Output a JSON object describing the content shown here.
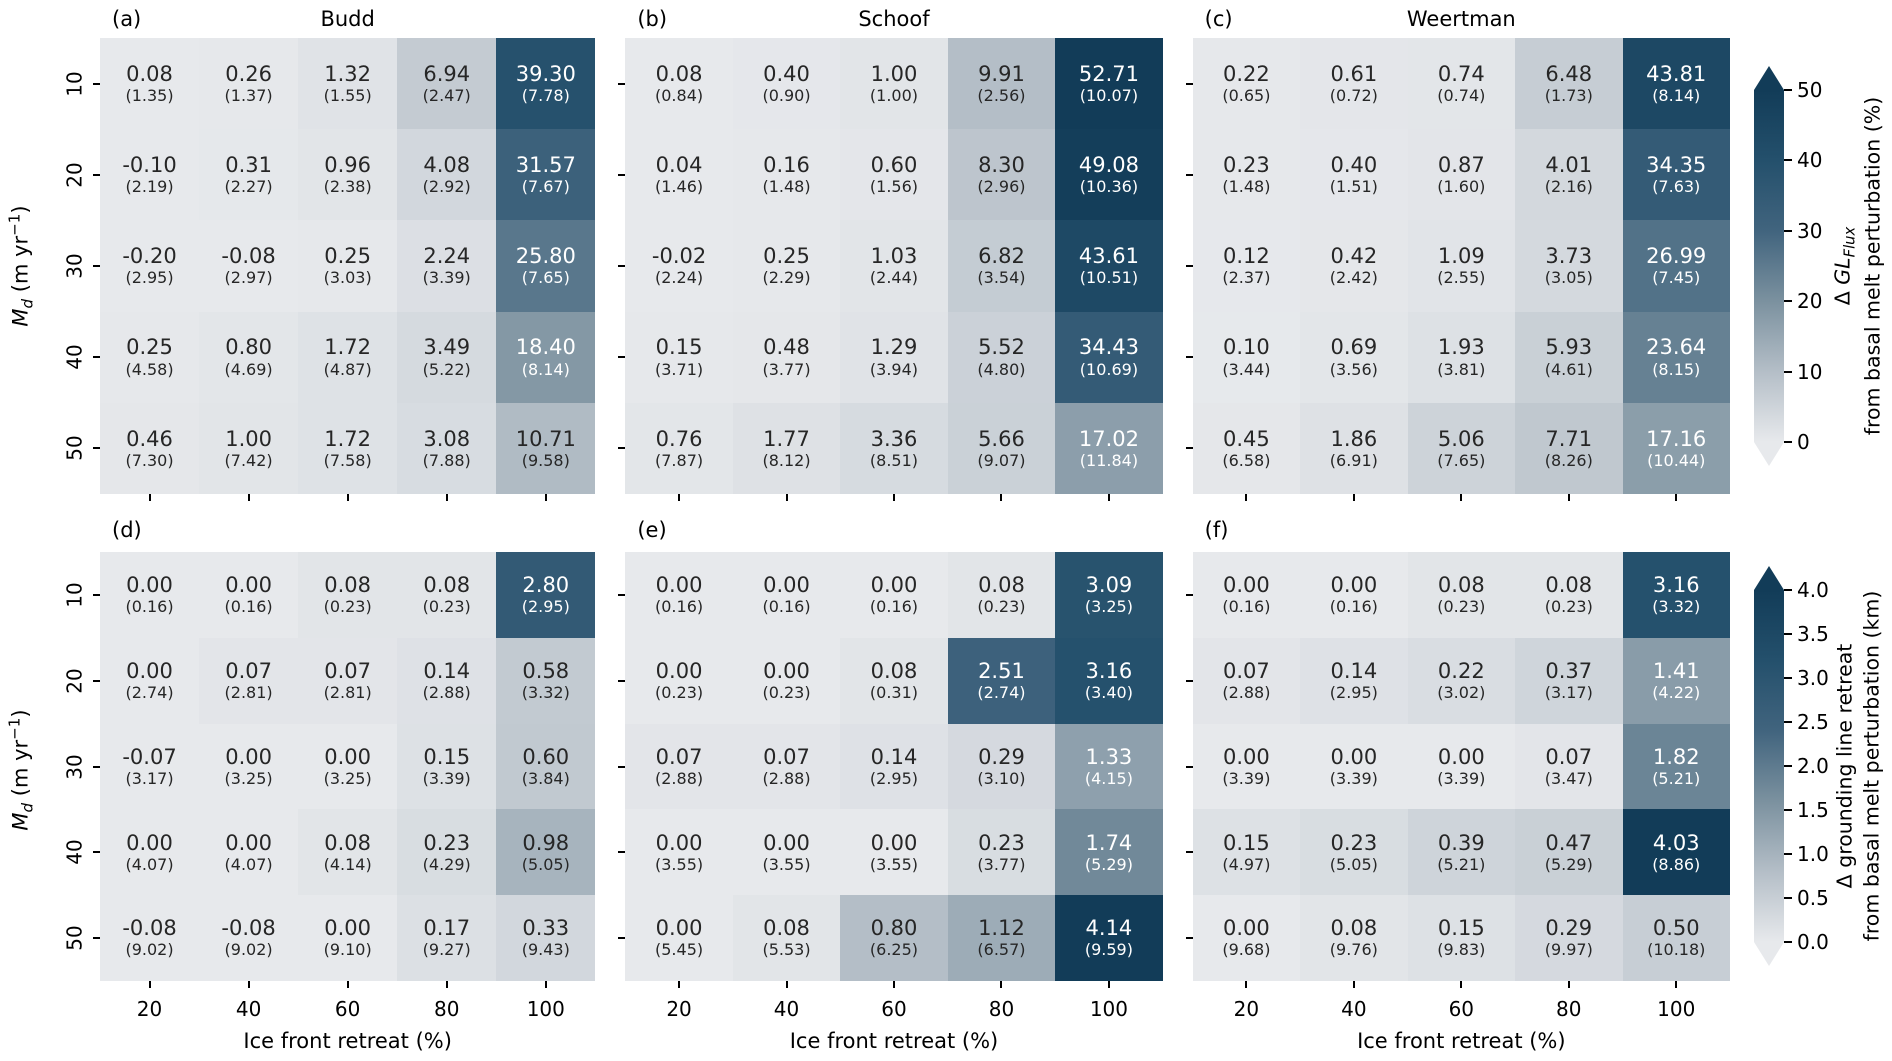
{
  "figure": {
    "x_label": "Ice front retreat (%)",
    "x_ticks": [
      "20",
      "40",
      "60",
      "80",
      "100"
    ],
    "y_ticks": [
      "10",
      "20",
      "30",
      "40",
      "50"
    ],
    "y_label": {
      "pre": "M",
      "sub": "d",
      "mid": " (m yr",
      "sup": "−1",
      "post": ")"
    }
  },
  "colormap": {
    "stops": [
      [
        0,
        "#e7e9ec"
      ],
      [
        0.2,
        "#b4bec7"
      ],
      [
        0.4,
        "#7b919f"
      ],
      [
        0.6,
        "#41647e"
      ],
      [
        0.8,
        "#24506c"
      ],
      [
        1,
        "#123c58"
      ]
    ],
    "text_threshold": 0.3,
    "annot_dark": "#262626",
    "annot_light": "#ffffff"
  },
  "colorbars": [
    {
      "vmin": 0,
      "vmax": 50,
      "ticks": [
        "0",
        "10",
        "20",
        "30",
        "40",
        "50"
      ],
      "label": {
        "line1": {
          "pre": "Δ ",
          "it": "GL",
          "sub": "Flux"
        },
        "line2": "from basal melt perturbation (%)"
      }
    },
    {
      "vmin": 0,
      "vmax": 4,
      "ticks": [
        "0.0",
        "0.5",
        "1.0",
        "1.5",
        "2.0",
        "2.5",
        "3.0",
        "3.5",
        "4.0"
      ],
      "label": {
        "line1": {
          "pre": "Δ grounding line retreat"
        },
        "line2": "from basal melt perturbation (km)"
      }
    }
  ],
  "chart_data": [
    {
      "type": "heatmap",
      "panel": "(a)",
      "title": "Budd",
      "colorbar": 0,
      "x": [
        20,
        40,
        60,
        80,
        100
      ],
      "y": [
        10,
        20,
        30,
        40,
        50
      ],
      "cells": [
        [
          [
            "0.08",
            "(1.35)"
          ],
          [
            "0.26",
            "(1.37)"
          ],
          [
            "1.32",
            "(1.55)"
          ],
          [
            "6.94",
            "(2.47)"
          ],
          [
            "39.30",
            "(7.78)"
          ]
        ],
        [
          [
            "-0.10",
            "(2.19)"
          ],
          [
            "0.31",
            "(2.27)"
          ],
          [
            "0.96",
            "(2.38)"
          ],
          [
            "4.08",
            "(2.92)"
          ],
          [
            "31.57",
            "(7.67)"
          ]
        ],
        [
          [
            "-0.20",
            "(2.95)"
          ],
          [
            "-0.08",
            "(2.97)"
          ],
          [
            "0.25",
            "(3.03)"
          ],
          [
            "2.24",
            "(3.39)"
          ],
          [
            "25.80",
            "(7.65)"
          ]
        ],
        [
          [
            "0.25",
            "(4.58)"
          ],
          [
            "0.80",
            "(4.69)"
          ],
          [
            "1.72",
            "(4.87)"
          ],
          [
            "3.49",
            "(5.22)"
          ],
          [
            "18.40",
            "(8.14)"
          ]
        ],
        [
          [
            "0.46",
            "(7.30)"
          ],
          [
            "1.00",
            "(7.42)"
          ],
          [
            "1.72",
            "(7.58)"
          ],
          [
            "3.08",
            "(7.88)"
          ],
          [
            "10.71",
            "(9.58)"
          ]
        ]
      ]
    },
    {
      "type": "heatmap",
      "panel": "(b)",
      "title": "Schoof",
      "colorbar": 0,
      "x": [
        20,
        40,
        60,
        80,
        100
      ],
      "y": [
        10,
        20,
        30,
        40,
        50
      ],
      "cells": [
        [
          [
            "0.08",
            "(0.84)"
          ],
          [
            "0.40",
            "(0.90)"
          ],
          [
            "1.00",
            "(1.00)"
          ],
          [
            "9.91",
            "(2.56)"
          ],
          [
            "52.71",
            "(10.07)"
          ]
        ],
        [
          [
            "0.04",
            "(1.46)"
          ],
          [
            "0.16",
            "(1.48)"
          ],
          [
            "0.60",
            "(1.56)"
          ],
          [
            "8.30",
            "(2.96)"
          ],
          [
            "49.08",
            "(10.36)"
          ]
        ],
        [
          [
            "-0.02",
            "(2.24)"
          ],
          [
            "0.25",
            "(2.29)"
          ],
          [
            "1.03",
            "(2.44)"
          ],
          [
            "6.82",
            "(3.54)"
          ],
          [
            "43.61",
            "(10.51)"
          ]
        ],
        [
          [
            "0.15",
            "(3.71)"
          ],
          [
            "0.48",
            "(3.77)"
          ],
          [
            "1.29",
            "(3.94)"
          ],
          [
            "5.52",
            "(4.80)"
          ],
          [
            "34.43",
            "(10.69)"
          ]
        ],
        [
          [
            "0.76",
            "(7.87)"
          ],
          [
            "1.77",
            "(8.12)"
          ],
          [
            "3.36",
            "(8.51)"
          ],
          [
            "5.66",
            "(9.07)"
          ],
          [
            "17.02",
            "(11.84)"
          ]
        ]
      ]
    },
    {
      "type": "heatmap",
      "panel": "(c)",
      "title": "Weertman",
      "colorbar": 0,
      "x": [
        20,
        40,
        60,
        80,
        100
      ],
      "y": [
        10,
        20,
        30,
        40,
        50
      ],
      "cells": [
        [
          [
            "0.22",
            "(0.65)"
          ],
          [
            "0.61",
            "(0.72)"
          ],
          [
            "0.74",
            "(0.74)"
          ],
          [
            "6.48",
            "(1.73)"
          ],
          [
            "43.81",
            "(8.14)"
          ]
        ],
        [
          [
            "0.23",
            "(1.48)"
          ],
          [
            "0.40",
            "(1.51)"
          ],
          [
            "0.87",
            "(1.60)"
          ],
          [
            "4.01",
            "(2.16)"
          ],
          [
            "34.35",
            "(7.63)"
          ]
        ],
        [
          [
            "0.12",
            "(2.37)"
          ],
          [
            "0.42",
            "(2.42)"
          ],
          [
            "1.09",
            "(2.55)"
          ],
          [
            "3.73",
            "(3.05)"
          ],
          [
            "26.99",
            "(7.45)"
          ]
        ],
        [
          [
            "0.10",
            "(3.44)"
          ],
          [
            "0.69",
            "(3.56)"
          ],
          [
            "1.93",
            "(3.81)"
          ],
          [
            "5.93",
            "(4.61)"
          ],
          [
            "23.64",
            "(8.15)"
          ]
        ],
        [
          [
            "0.45",
            "(6.58)"
          ],
          [
            "1.86",
            "(6.91)"
          ],
          [
            "5.06",
            "(7.65)"
          ],
          [
            "7.71",
            "(8.26)"
          ],
          [
            "17.16",
            "(10.44)"
          ]
        ]
      ]
    },
    {
      "type": "heatmap",
      "panel": "(d)",
      "title": "",
      "colorbar": 1,
      "x": [
        20,
        40,
        60,
        80,
        100
      ],
      "y": [
        10,
        20,
        30,
        40,
        50
      ],
      "cells": [
        [
          [
            "0.00",
            "(0.16)"
          ],
          [
            "0.00",
            "(0.16)"
          ],
          [
            "0.08",
            "(0.23)"
          ],
          [
            "0.08",
            "(0.23)"
          ],
          [
            "2.80",
            "(2.95)"
          ]
        ],
        [
          [
            "0.00",
            "(2.74)"
          ],
          [
            "0.07",
            "(2.81)"
          ],
          [
            "0.07",
            "(2.81)"
          ],
          [
            "0.14",
            "(2.88)"
          ],
          [
            "0.58",
            "(3.32)"
          ]
        ],
        [
          [
            "-0.07",
            "(3.17)"
          ],
          [
            "0.00",
            "(3.25)"
          ],
          [
            "0.00",
            "(3.25)"
          ],
          [
            "0.15",
            "(3.39)"
          ],
          [
            "0.60",
            "(3.84)"
          ]
        ],
        [
          [
            "0.00",
            "(4.07)"
          ],
          [
            "0.00",
            "(4.07)"
          ],
          [
            "0.08",
            "(4.14)"
          ],
          [
            "0.23",
            "(4.29)"
          ],
          [
            "0.98",
            "(5.05)"
          ]
        ],
        [
          [
            "-0.08",
            "(9.02)"
          ],
          [
            "-0.08",
            "(9.02)"
          ],
          [
            "0.00",
            "(9.10)"
          ],
          [
            "0.17",
            "(9.27)"
          ],
          [
            "0.33",
            "(9.43)"
          ]
        ]
      ]
    },
    {
      "type": "heatmap",
      "panel": "(e)",
      "title": "",
      "colorbar": 1,
      "x": [
        20,
        40,
        60,
        80,
        100
      ],
      "y": [
        10,
        20,
        30,
        40,
        50
      ],
      "cells": [
        [
          [
            "0.00",
            "(0.16)"
          ],
          [
            "0.00",
            "(0.16)"
          ],
          [
            "0.00",
            "(0.16)"
          ],
          [
            "0.08",
            "(0.23)"
          ],
          [
            "3.09",
            "(3.25)"
          ]
        ],
        [
          [
            "0.00",
            "(0.23)"
          ],
          [
            "0.00",
            "(0.23)"
          ],
          [
            "0.08",
            "(0.31)"
          ],
          [
            "2.51",
            "(2.74)"
          ],
          [
            "3.16",
            "(3.40)"
          ]
        ],
        [
          [
            "0.07",
            "(2.88)"
          ],
          [
            "0.07",
            "(2.88)"
          ],
          [
            "0.14",
            "(2.95)"
          ],
          [
            "0.29",
            "(3.10)"
          ],
          [
            "1.33",
            "(4.15)"
          ]
        ],
        [
          [
            "0.00",
            "(3.55)"
          ],
          [
            "0.00",
            "(3.55)"
          ],
          [
            "0.00",
            "(3.55)"
          ],
          [
            "0.23",
            "(3.77)"
          ],
          [
            "1.74",
            "(5.29)"
          ]
        ],
        [
          [
            "0.00",
            "(5.45)"
          ],
          [
            "0.08",
            "(5.53)"
          ],
          [
            "0.80",
            "(6.25)"
          ],
          [
            "1.12",
            "(6.57)"
          ],
          [
            "4.14",
            "(9.59)"
          ]
        ]
      ]
    },
    {
      "type": "heatmap",
      "panel": "(f)",
      "title": "",
      "colorbar": 1,
      "x": [
        20,
        40,
        60,
        80,
        100
      ],
      "y": [
        10,
        20,
        30,
        40,
        50
      ],
      "cells": [
        [
          [
            "0.00",
            "(0.16)"
          ],
          [
            "0.00",
            "(0.16)"
          ],
          [
            "0.08",
            "(0.23)"
          ],
          [
            "0.08",
            "(0.23)"
          ],
          [
            "3.16",
            "(3.32)"
          ]
        ],
        [
          [
            "0.07",
            "(2.88)"
          ],
          [
            "0.14",
            "(2.95)"
          ],
          [
            "0.22",
            "(3.02)"
          ],
          [
            "0.37",
            "(3.17)"
          ],
          [
            "1.41",
            "(4.22)"
          ]
        ],
        [
          [
            "0.00",
            "(3.39)"
          ],
          [
            "0.00",
            "(3.39)"
          ],
          [
            "0.00",
            "(3.39)"
          ],
          [
            "0.07",
            "(3.47)"
          ],
          [
            "1.82",
            "(5.21)"
          ]
        ],
        [
          [
            "0.15",
            "(4.97)"
          ],
          [
            "0.23",
            "(5.05)"
          ],
          [
            "0.39",
            "(5.21)"
          ],
          [
            "0.47",
            "(5.29)"
          ],
          [
            "4.03",
            "(8.86)"
          ]
        ],
        [
          [
            "0.00",
            "(9.68)"
          ],
          [
            "0.08",
            "(9.76)"
          ],
          [
            "0.15",
            "(9.83)"
          ],
          [
            "0.29",
            "(9.97)"
          ],
          [
            "0.50",
            "(10.18)"
          ]
        ]
      ]
    }
  ]
}
